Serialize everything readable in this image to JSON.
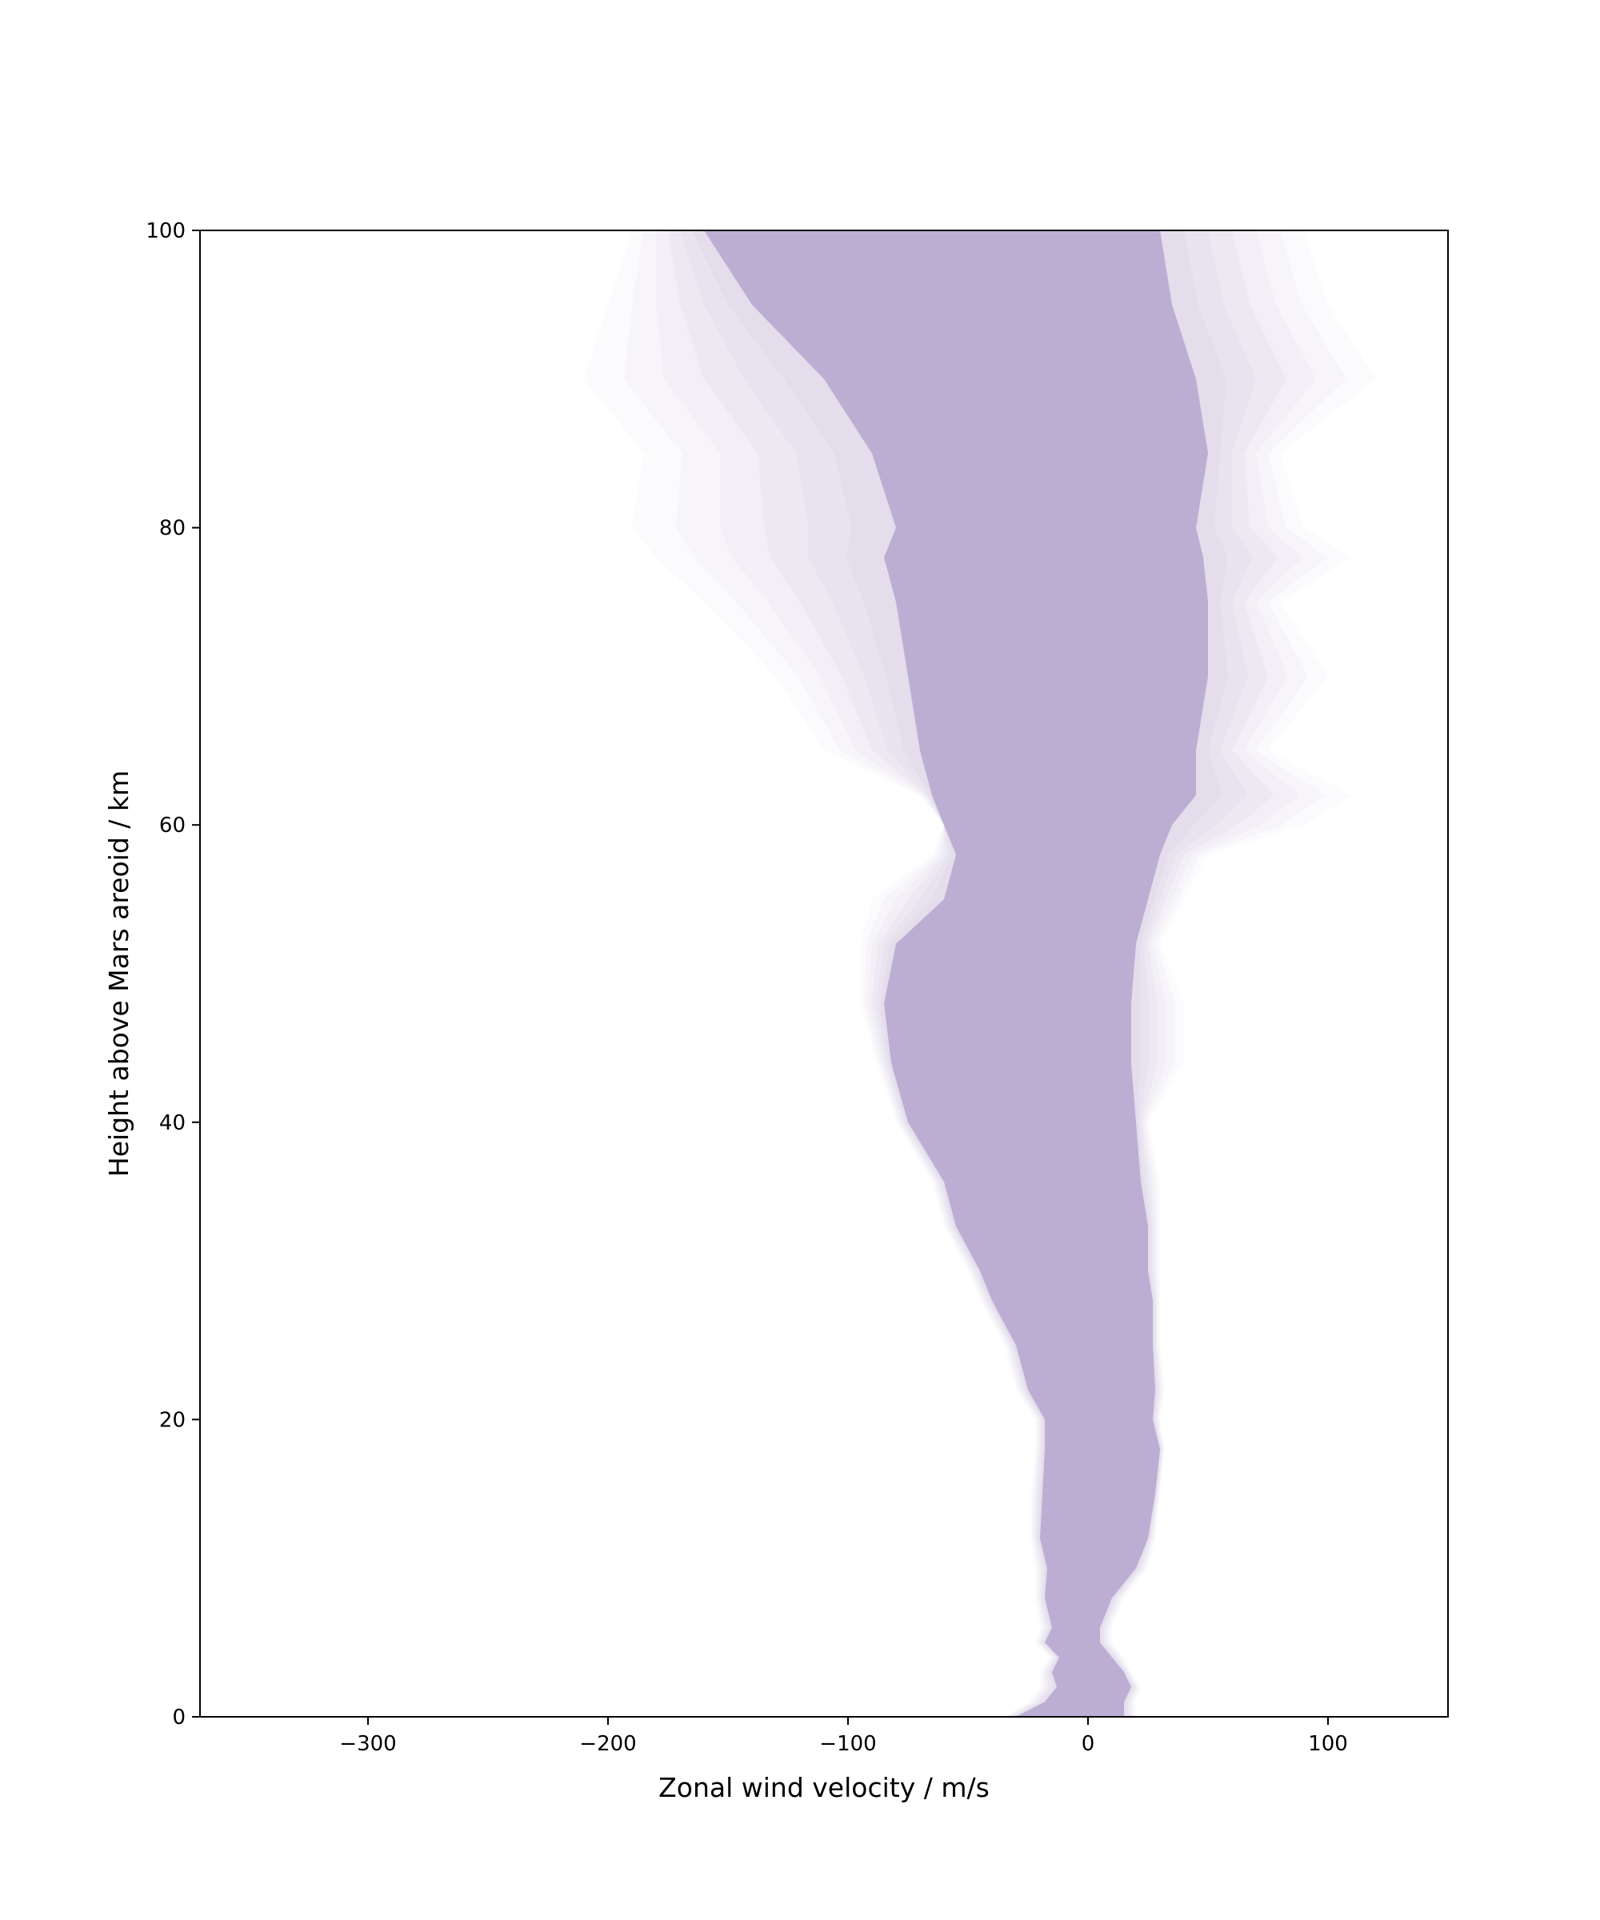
{
  "chart_data": {
    "type": "area",
    "title": "",
    "xlabel": "Zonal wind velocity / m/s",
    "ylabel": "Height above Mars areoid / km",
    "xlim": [
      -370,
      150
    ],
    "ylim": [
      0,
      100
    ],
    "xticks": [
      -300,
      -200,
      -100,
      0,
      100
    ],
    "xtick_labels": [
      "−300",
      "−200",
      "−100",
      "0",
      "100"
    ],
    "yticks": [
      0,
      20,
      40,
      60,
      80,
      100
    ],
    "ytick_labels": [
      "0",
      "20",
      "40",
      "60",
      "80",
      "100"
    ],
    "grid": false,
    "legend": "none",
    "fill_color": "#bcaed3",
    "description_series": [
      {
        "height_km": [
          0,
          1,
          2,
          3,
          4,
          5,
          6,
          8,
          10,
          12,
          15,
          18,
          20,
          22,
          25,
          28,
          30,
          33,
          36,
          40,
          44,
          48,
          52,
          55,
          58,
          60,
          62,
          65,
          70,
          75,
          78,
          80,
          85,
          90,
          95,
          100
        ],
        "core_min": [
          -30,
          -18,
          -13,
          -15,
          -12,
          -18,
          -15,
          -18,
          -17,
          -20,
          -19,
          -18,
          -18,
          -25,
          -30,
          -40,
          -45,
          -55,
          -60,
          -75,
          -82,
          -85,
          -80,
          -60,
          -55,
          -60,
          -65,
          -70,
          -75,
          -80,
          -85,
          -80,
          -90,
          -110,
          -140,
          -160
        ],
        "core_max": [
          15,
          15,
          18,
          15,
          10,
          5,
          5,
          10,
          20,
          25,
          28,
          30,
          27,
          28,
          27,
          27,
          25,
          25,
          22,
          20,
          18,
          18,
          20,
          25,
          30,
          35,
          45,
          45,
          50,
          50,
          48,
          45,
          50,
          45,
          35,
          30
        ],
        "envelope_min": [
          -35,
          -25,
          -20,
          -20,
          -16,
          -22,
          -20,
          -22,
          -22,
          -24,
          -24,
          -22,
          -22,
          -30,
          -35,
          -45,
          -50,
          -60,
          -65,
          -80,
          -88,
          -95,
          -95,
          -90,
          -65,
          -60,
          -70,
          -110,
          -130,
          -160,
          -180,
          -190,
          -185,
          -210,
          -200,
          -190
        ],
        "envelope_max": [
          20,
          20,
          22,
          18,
          15,
          10,
          10,
          15,
          25,
          28,
          30,
          32,
          30,
          32,
          30,
          30,
          30,
          30,
          30,
          25,
          40,
          40,
          30,
          40,
          50,
          90,
          110,
          75,
          100,
          80,
          110,
          90,
          80,
          120,
          100,
          90
        ]
      }
    ]
  }
}
